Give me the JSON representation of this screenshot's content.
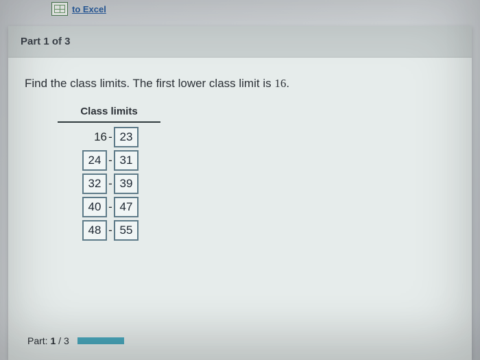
{
  "topbar": {
    "excel_link_text": "to Excel"
  },
  "header": {
    "part_label": "Part 1 of 3"
  },
  "instruction": {
    "prefix": "Find the class limits. The first lower class limit is ",
    "first_lower": "16",
    "suffix": "."
  },
  "table": {
    "title": "Class limits",
    "rows": [
      {
        "lower": "16",
        "upper": "23",
        "lower_editable": false
      },
      {
        "lower": "24",
        "upper": "31",
        "lower_editable": true
      },
      {
        "lower": "32",
        "upper": "39",
        "lower_editable": true
      },
      {
        "lower": "40",
        "upper": "47",
        "lower_editable": true
      },
      {
        "lower": "48",
        "upper": "55",
        "lower_editable": true
      }
    ],
    "colors": {
      "box_border": "#5d7a88",
      "box_bg": "#f0f5f5",
      "title_underline": "#2f3a3d"
    }
  },
  "progress": {
    "label_prefix": "Part: ",
    "current": "1",
    "sep": " / ",
    "total": "3",
    "bar_color": "#4aa8bd"
  },
  "layout": {
    "page_bg_gradient": [
      "#c8ccd0",
      "#d4d8db",
      "#c0c5ca"
    ],
    "paper_bg": "#e6eceb",
    "header_bg": "#c9d0d0",
    "text_color": "#2b3036",
    "font_family": "Arial"
  }
}
